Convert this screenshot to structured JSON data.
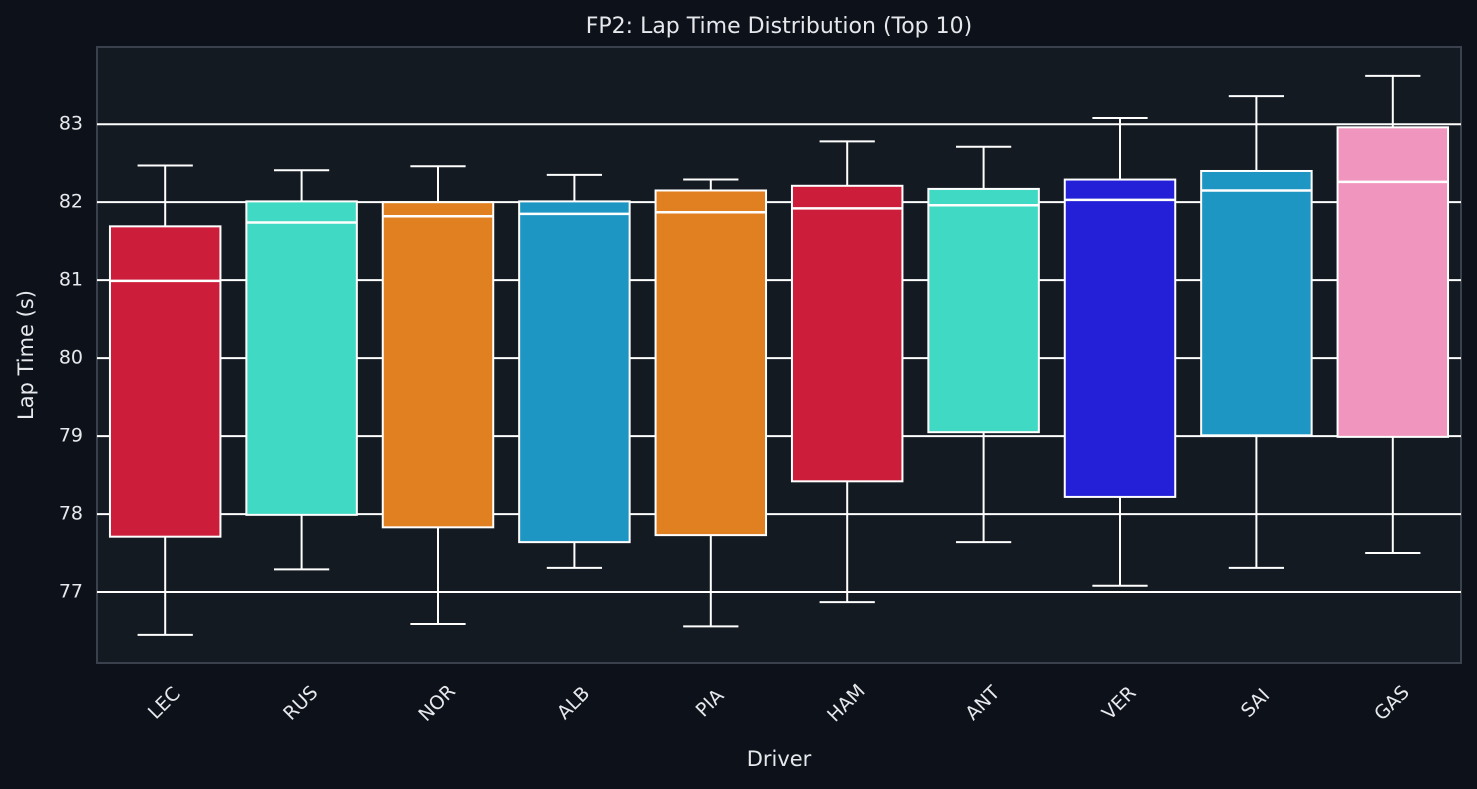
{
  "chart_data": {
    "type": "box",
    "title": "FP2: Lap Time Distribution (Top 10)",
    "x_label": "Driver",
    "y_label": "Lap Time (s)",
    "categories": [
      "LEC",
      "RUS",
      "NOR",
      "ALB",
      "PIA",
      "HAM",
      "ANT",
      "VER",
      "SAI",
      "GAS"
    ],
    "whisker_low": [
      76.45,
      77.29,
      76.59,
      77.31,
      76.56,
      76.87,
      77.64,
      77.08,
      77.31,
      77.5
    ],
    "q1": [
      77.71,
      77.99,
      77.83,
      77.64,
      77.73,
      78.42,
      79.05,
      78.22,
      79.01,
      78.99
    ],
    "median": [
      80.99,
      81.74,
      81.82,
      81.85,
      81.87,
      81.92,
      81.96,
      82.03,
      82.15,
      82.26
    ],
    "q3": [
      81.69,
      82.01,
      82.0,
      82.01,
      82.15,
      82.21,
      82.17,
      82.29,
      82.4,
      82.96
    ],
    "whisker_high": [
      82.47,
      82.41,
      82.46,
      82.35,
      82.29,
      82.78,
      82.71,
      83.08,
      83.36,
      83.62
    ],
    "colors": [
      "#cc1e3a",
      "#40d9c3",
      "#e08020",
      "#1e96c3",
      "#e08020",
      "#cc1e3a",
      "#40d9c3",
      "#2320d8",
      "#1e96c3",
      "#f096be"
    ],
    "ylim": [
      76.09,
      83.99
    ],
    "yticks": [
      77,
      78,
      79,
      80,
      81,
      82,
      83
    ],
    "grid": true
  }
}
